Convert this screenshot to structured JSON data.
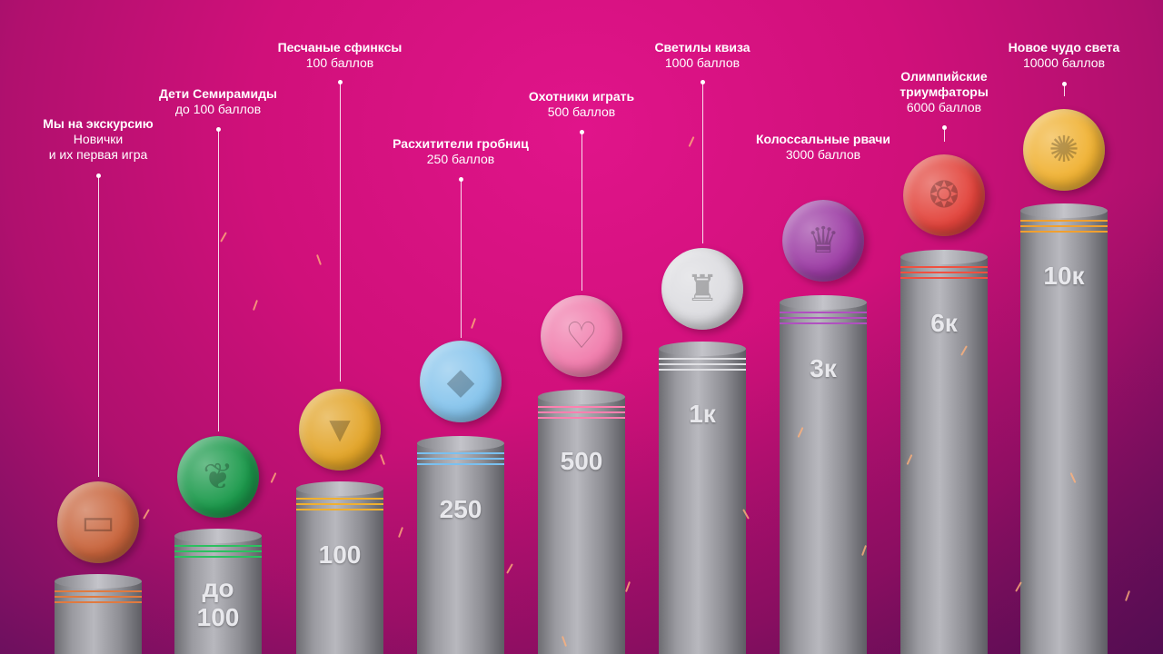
{
  "levels": [
    {
      "title": "Мы на экскурсию",
      "lines": [
        "Новички",
        "и их первая игра"
      ],
      "pillar_label": "",
      "coin_color": "#c8643c",
      "ring_color": "#e07a40",
      "icon": "suitcase-icon"
    },
    {
      "title": "Дети Семирамиды",
      "lines": [
        "до 100 баллов"
      ],
      "pillar_label": "до 100",
      "coin_color": "#1c9a4c",
      "ring_color": "#2cc060",
      "icon": "leaves-icon"
    },
    {
      "title": "Песчаные сфинксы",
      "lines": [
        "100 баллов"
      ],
      "pillar_label": "100",
      "coin_color": "#e2a428",
      "ring_color": "#f0b030",
      "icon": "sphinx-cat-icon"
    },
    {
      "title": "Расхитители гробниц",
      "lines": [
        "250 баллов"
      ],
      "pillar_label": "250",
      "coin_color": "#86c4ec",
      "ring_color": "#7ac0f0",
      "icon": "diamond-icon"
    },
    {
      "title": "Охотники играть",
      "lines": [
        "500 баллов"
      ],
      "pillar_label": "500",
      "coin_color": "#f07cac",
      "ring_color": "#ff80b0",
      "icon": "heart-icon"
    },
    {
      "title": "Светилы квиза",
      "lines": [
        "1000 баллов"
      ],
      "pillar_label": "1к",
      "coin_color": "#dcdce0",
      "ring_color": "#e0e0e4",
      "icon": "lighthouse-icon"
    },
    {
      "title": "Колоссальные рвачи",
      "lines": [
        "3000 баллов"
      ],
      "pillar_label": "3к",
      "coin_color": "#9c3ca4",
      "ring_color": "#b050c0",
      "icon": "crown-icon"
    },
    {
      "title": "Олимпийские триумфаторы",
      "lines": [
        "6000 баллов"
      ],
      "pillar_label": "6к",
      "coin_color": "#e2443c",
      "ring_color": "#f05040",
      "icon": "flame-icon"
    },
    {
      "title": "Новое чудо света",
      "lines": [
        "10000 баллов"
      ],
      "pillar_label": "10к",
      "coin_color": "#f0b234",
      "ring_color": "#f0a030",
      "icon": "sun-icon"
    }
  ]
}
